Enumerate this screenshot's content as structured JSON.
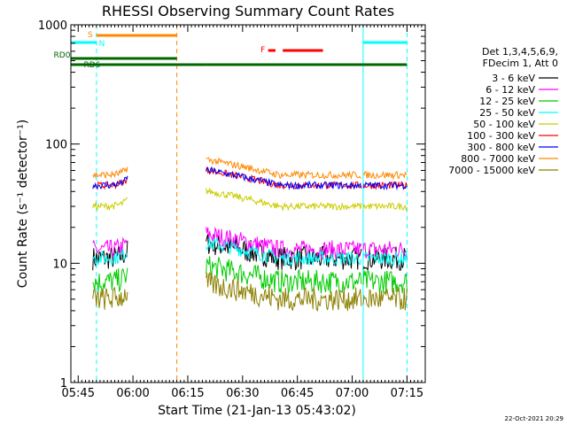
{
  "chart_data": {
    "type": "line",
    "title": "RHESSI Observing Summary Count Rates",
    "xlabel": "Start Time (21-Jan-13 05:43:02)",
    "ylabel": "Count Rate (s⁻¹ detector⁻¹)",
    "yscale": "log",
    "ylim": [
      1,
      1000
    ],
    "xlim_minutes_from_start": [
      -2,
      95
    ],
    "x_tick_labels": [
      "05:45",
      "06:00",
      "06:15",
      "06:30",
      "06:45",
      "07:00",
      "07:15"
    ],
    "x_tick_minutes": [
      0,
      15,
      30,
      45,
      60,
      75,
      90
    ],
    "y_tick_labels": [
      "1",
      "10",
      "100",
      "1000"
    ],
    "y_tick_values": [
      1,
      10,
      100,
      1000
    ],
    "legend_header": [
      "Det 1,3,4,5,6,9,",
      "FDecim 1, Att 0"
    ],
    "legend_position": "right",
    "series": [
      {
        "name": "3 - 6 keV",
        "color": "#000000",
        "level": 11,
        "noise": 0.1
      },
      {
        "name": "6 - 12 keV",
        "color": "#ff00ff",
        "level": 13,
        "noise": 0.08
      },
      {
        "name": "12 - 25 keV",
        "color": "#00cc00",
        "level": 7,
        "noise": 0.1
      },
      {
        "name": "25 - 50 keV",
        "color": "#00ffff",
        "level": 11,
        "noise": 0.06
      },
      {
        "name": "50 - 100 keV",
        "color": "#cccc00",
        "level": 30,
        "noise": 0.03
      },
      {
        "name": "100 - 300 keV",
        "color": "#ff0000",
        "level": 45,
        "noise": 0.03
      },
      {
        "name": "300 - 800 keV",
        "color": "#0000ff",
        "level": 45,
        "noise": 0.03
      },
      {
        "name": "800 - 7000 keV",
        "color": "#ff8800",
        "level": 55,
        "noise": 0.03
      },
      {
        "name": "7000 - 15000 keV",
        "color": "#8b8000",
        "level": 5,
        "noise": 0.1
      }
    ],
    "orbit_flags": [
      {
        "label": "S",
        "color": "#ff8800",
        "intervals": [
          [
            5,
            27
          ]
        ]
      },
      {
        "label": "N",
        "color": "#00ffff",
        "intervals": [
          [
            -2,
            5
          ],
          [
            78,
            90
          ]
        ]
      },
      {
        "label": "F",
        "color": "#ff0000",
        "intervals": [
          [
            52,
            54
          ],
          [
            56,
            67
          ]
        ]
      },
      {
        "label": "RD0",
        "color": "#006600",
        "intervals": [
          [
            -2,
            27
          ]
        ]
      },
      {
        "label": "RD6",
        "color": "#006600",
        "intervals": [
          [
            -2,
            27
          ],
          [
            27,
            35
          ],
          [
            35,
            78
          ],
          [
            78,
            90
          ]
        ]
      }
    ],
    "vlines": [
      {
        "minute": -2,
        "color": "#00ffff",
        "dash": false
      },
      {
        "minute": 5,
        "color": "#00ffff",
        "dash": true
      },
      {
        "minute": 27,
        "color": "#ff8800",
        "dash": true
      },
      {
        "minute": 78,
        "color": "#00ffff",
        "dash": false
      },
      {
        "minute": 90,
        "color": "#00ffff",
        "dash": true
      }
    ]
  },
  "footer": {
    "timestamp": "22-Oct-2021 20:29"
  }
}
